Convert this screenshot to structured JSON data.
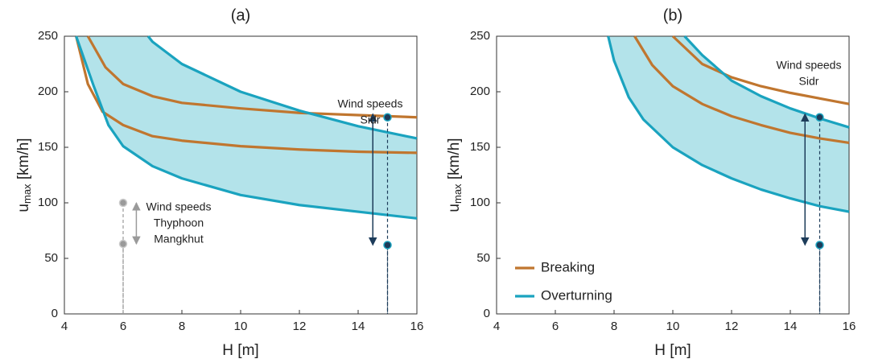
{
  "chart_data": [
    {
      "type": "line",
      "title": "(a)",
      "xlabel": "H [m]",
      "ylabel_main": "u",
      "ylabel_sub": "max",
      "ylabel_unit": " [km/h]",
      "xlim": [
        4,
        16
      ],
      "xticks": [
        4,
        6,
        8,
        10,
        12,
        14,
        16
      ],
      "ylim": [
        0,
        250
      ],
      "yticks": [
        0,
        50,
        100,
        150,
        200,
        250
      ],
      "fill_between": [
        2,
        3
      ],
      "fill_color": "#b3e3ea",
      "series": [
        {
          "color": "#c0762f",
          "x": [
            4.8,
            5.4,
            6,
            7,
            8,
            10,
            12,
            14,
            16
          ],
          "values": [
            250,
            222,
            207,
            196,
            190,
            185,
            181,
            179,
            177
          ]
        },
        {
          "color": "#c0762f",
          "x": [
            4.4,
            4.8,
            5.3,
            6,
            7,
            8,
            10,
            12,
            14,
            16
          ],
          "values": [
            250,
            207,
            182,
            170,
            160,
            156,
            151,
            148,
            146,
            145
          ]
        },
        {
          "color": "#1aa3bf",
          "x": [
            6.85,
            7,
            8,
            10,
            12,
            14,
            16
          ],
          "values": [
            250,
            245,
            225,
            200,
            183,
            169,
            158
          ]
        },
        {
          "color": "#1aa3bf",
          "x": [
            4.4,
            5,
            5.5,
            6,
            7,
            8,
            10,
            12,
            14,
            16
          ],
          "values": [
            250,
            205,
            170,
            151,
            133,
            122,
            107,
            98,
            92,
            86
          ]
        }
      ],
      "markers": [
        {
          "x": 15,
          "y": 177,
          "color": "#1d3c5a"
        },
        {
          "x": 15,
          "y": 62,
          "color": "#1d3c5a"
        },
        {
          "x": 6,
          "y": 100,
          "color": "#9a9a9a"
        },
        {
          "x": 6,
          "y": 63,
          "color": "#9a9a9a"
        }
      ],
      "arrows": [
        {
          "x": 14.5,
          "from": 62,
          "to": 180,
          "color": "#1d3c5a"
        },
        {
          "x": 6.45,
          "from": 63,
          "to": 100,
          "color": "#9a9a9a"
        }
      ],
      "annotations": [
        [
          "Wind speeds",
          "Sidr"
        ],
        [
          "Wind speeds",
          "Thyphoon",
          "Mangkhut"
        ]
      ]
    },
    {
      "type": "line",
      "title": "(b)",
      "xlabel": "H [m]",
      "ylabel_main": "u",
      "ylabel_sub": "max",
      "ylabel_unit": " [km/h]",
      "xlim": [
        4,
        16
      ],
      "xticks": [
        4,
        6,
        8,
        10,
        12,
        14,
        16
      ],
      "ylim": [
        0,
        250
      ],
      "yticks": [
        0,
        50,
        100,
        150,
        200,
        250
      ],
      "fill_between": [
        2,
        3
      ],
      "fill_color": "#b3e3ea",
      "series": [
        {
          "color": "#c0762f",
          "x": [
            10,
            11,
            12,
            13,
            14,
            15,
            16
          ],
          "values": [
            250,
            225,
            213,
            205,
            199,
            194,
            189
          ]
        },
        {
          "color": "#c0762f",
          "x": [
            8.7,
            9.3,
            10,
            11,
            12,
            13,
            14,
            15,
            16
          ],
          "values": [
            250,
            224,
            205,
            189,
            178,
            170,
            163,
            158,
            154
          ]
        },
        {
          "color": "#1aa3bf",
          "x": [
            10.4,
            11,
            12,
            13,
            14,
            15,
            16
          ],
          "values": [
            250,
            233,
            210,
            196,
            185,
            176,
            168
          ]
        },
        {
          "color": "#1aa3bf",
          "x": [
            7.8,
            8,
            8.5,
            9,
            10,
            11,
            12,
            13,
            14,
            15,
            16
          ],
          "values": [
            250,
            228,
            195,
            175,
            150,
            134,
            122,
            112,
            104,
            97,
            92
          ]
        }
      ],
      "markers": [
        {
          "x": 15,
          "y": 177,
          "color": "#1d3c5a"
        },
        {
          "x": 15,
          "y": 62,
          "color": "#1d3c5a"
        }
      ],
      "arrows": [
        {
          "x": 14.5,
          "from": 62,
          "to": 180,
          "color": "#1d3c5a"
        }
      ],
      "annotations": [
        [
          "Wind speeds",
          "Sidr"
        ]
      ],
      "legend": [
        {
          "name": "Breaking",
          "color": "#c0762f"
        },
        {
          "name": "Overturning",
          "color": "#1aa3bf"
        }
      ]
    }
  ]
}
